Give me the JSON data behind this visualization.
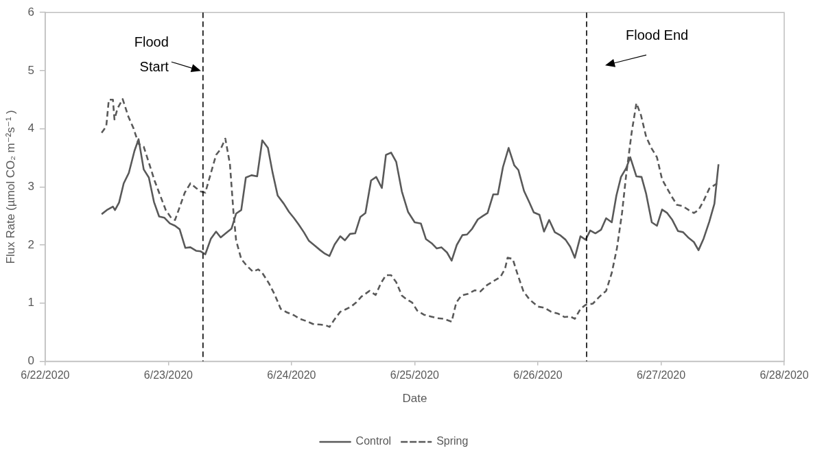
{
  "chart_data": {
    "type": "line",
    "xlabel": "Date",
    "ylabel": "Flux Rate (µmol CO₂ m⁻²s⁻¹ )",
    "xlim": [
      "2020-06-22",
      "2020-06-28"
    ],
    "xticks": [
      {
        "value": "2020-06-22",
        "label": "6/22/2020"
      },
      {
        "value": "2020-06-23",
        "label": "6/23/2020"
      },
      {
        "value": "2020-06-24",
        "label": "6/24/2020"
      },
      {
        "value": "2020-06-25",
        "label": "6/25/2020"
      },
      {
        "value": "2020-06-26",
        "label": "6/26/2020"
      },
      {
        "value": "2020-06-27",
        "label": "6/27/2020"
      },
      {
        "value": "2020-06-28",
        "label": "6/28/2020"
      }
    ],
    "ylim": [
      0,
      6
    ],
    "yticks": [
      0,
      1,
      2,
      3,
      4,
      5,
      6
    ],
    "grid": false,
    "legend": "bottom",
    "marker": "none",
    "ref_lines": [
      {
        "axis": "x",
        "value": "2020-06-23T06:45",
        "label": "Flood Start",
        "color": "#000000",
        "line_style": "dashed"
      },
      {
        "axis": "x",
        "value": "2020-06-26T09:30",
        "label": "Flood End",
        "color": "#000000",
        "line_style": "dashed"
      }
    ],
    "series": [
      {
        "name": "Control",
        "color": "#595959",
        "line_style": "solid",
        "x": [
          "2020-06-22T11:00",
          "2020-06-22T12:00",
          "2020-06-22T13:12",
          "2020-06-22T13:36",
          "2020-06-22T14:24",
          "2020-06-22T15:18",
          "2020-06-22T16:18",
          "2020-06-22T17:24",
          "2020-06-22T18:12",
          "2020-06-22T19:12",
          "2020-06-22T20:12",
          "2020-06-22T21:12",
          "2020-06-22T22:12",
          "2020-06-22T23:12",
          "2020-06-23T00:18",
          "2020-06-23T01:18",
          "2020-06-23T02:12",
          "2020-06-23T03:18",
          "2020-06-23T04:18",
          "2020-06-23T05:24",
          "2020-06-23T06:18",
          "2020-06-23T07:12",
          "2020-06-23T08:18",
          "2020-06-23T09:18",
          "2020-06-23T10:12",
          "2020-06-23T11:18",
          "2020-06-23T12:18",
          "2020-06-23T13:12",
          "2020-06-23T14:12",
          "2020-06-23T15:06",
          "2020-06-23T16:12",
          "2020-06-23T17:18",
          "2020-06-23T18:18",
          "2020-06-23T19:24",
          "2020-06-23T20:18",
          "2020-06-23T21:18",
          "2020-06-23T22:30",
          "2020-06-23T23:30",
          "2020-06-24T00:30",
          "2020-06-24T01:24",
          "2020-06-24T02:24",
          "2020-06-24T03:24",
          "2020-06-24T04:30",
          "2020-06-24T05:36",
          "2020-06-24T06:30",
          "2020-06-24T07:24",
          "2020-06-24T08:24",
          "2020-06-24T09:30",
          "2020-06-24T10:24",
          "2020-06-24T11:24",
          "2020-06-24T12:24",
          "2020-06-24T13:24",
          "2020-06-24T14:24",
          "2020-06-24T15:30",
          "2020-06-24T16:30",
          "2020-06-24T17:36",
          "2020-06-24T18:24",
          "2020-06-24T19:24",
          "2020-06-24T20:24",
          "2020-06-24T21:30",
          "2020-06-24T22:42",
          "2020-06-25T00:00",
          "2020-06-25T01:12",
          "2020-06-25T02:12",
          "2020-06-25T03:18",
          "2020-06-25T04:18",
          "2020-06-25T05:12",
          "2020-06-25T06:18",
          "2020-06-25T07:12",
          "2020-06-25T08:12",
          "2020-06-25T09:18",
          "2020-06-25T10:12",
          "2020-06-25T11:12",
          "2020-06-25T12:18",
          "2020-06-25T13:18",
          "2020-06-25T14:12",
          "2020-06-25T15:18",
          "2020-06-25T16:12",
          "2020-06-25T17:12",
          "2020-06-25T18:18",
          "2020-06-25T19:24",
          "2020-06-25T20:12",
          "2020-06-25T21:18",
          "2020-06-25T22:18",
          "2020-06-25T23:12",
          "2020-06-26T00:18",
          "2020-06-26T01:12",
          "2020-06-26T02:12",
          "2020-06-26T03:18",
          "2020-06-26T04:18",
          "2020-06-26T05:24",
          "2020-06-26T06:18",
          "2020-06-26T07:12",
          "2020-06-26T08:18",
          "2020-06-26T09:18",
          "2020-06-26T10:12",
          "2020-06-26T11:12",
          "2020-06-26T12:18",
          "2020-06-26T13:18",
          "2020-06-26T14:24",
          "2020-06-26T15:18",
          "2020-06-26T16:12",
          "2020-06-26T17:12",
          "2020-06-26T18:00",
          "2020-06-26T19:12",
          "2020-06-26T20:12",
          "2020-06-26T21:06",
          "2020-06-26T22:12",
          "2020-06-26T23:12",
          "2020-06-27T00:12",
          "2020-06-27T01:12",
          "2020-06-27T02:12",
          "2020-06-27T03:18",
          "2020-06-27T04:18",
          "2020-06-27T05:24",
          "2020-06-27T06:24",
          "2020-06-27T07:18",
          "2020-06-27T08:18",
          "2020-06-27T09:24",
          "2020-06-27T10:24",
          "2020-06-27T11:12"
        ],
        "values": [
          2.53,
          2.6,
          2.66,
          2.6,
          2.73,
          3.06,
          3.24,
          3.62,
          3.82,
          3.3,
          3.16,
          2.74,
          2.49,
          2.47,
          2.37,
          2.33,
          2.27,
          1.95,
          1.96,
          1.9,
          1.89,
          1.84,
          2.11,
          2.23,
          2.13,
          2.21,
          2.28,
          2.54,
          2.6,
          3.16,
          3.2,
          3.18,
          3.8,
          3.67,
          3.25,
          2.85,
          2.71,
          2.57,
          2.46,
          2.35,
          2.22,
          2.07,
          1.99,
          1.91,
          1.85,
          1.81,
          2.01,
          2.15,
          2.08,
          2.19,
          2.2,
          2.48,
          2.55,
          3.11,
          3.17,
          2.98,
          3.55,
          3.59,
          3.43,
          2.92,
          2.57,
          2.39,
          2.37,
          2.1,
          2.03,
          1.94,
          1.96,
          1.87,
          1.73,
          2.0,
          2.17,
          2.18,
          2.28,
          2.44,
          2.5,
          2.55,
          2.87,
          2.87,
          3.34,
          3.67,
          3.37,
          3.29,
          2.93,
          2.74,
          2.56,
          2.52,
          2.23,
          2.43,
          2.22,
          2.17,
          2.09,
          1.97,
          1.78,
          2.15,
          2.09,
          2.25,
          2.2,
          2.26,
          2.46,
          2.39,
          2.85,
          3.17,
          3.32,
          3.51,
          3.18,
          3.17,
          2.88,
          2.39,
          2.33,
          2.61,
          2.55,
          2.43,
          2.24,
          2.22,
          2.12,
          2.05,
          1.91,
          2.11,
          2.4,
          2.71,
          3.39
        ]
      },
      {
        "name": "Spring",
        "color": "#595959",
        "line_style": "dashed",
        "x": [
          "2020-06-22T11:00",
          "2020-06-22T11:54",
          "2020-06-22T12:24",
          "2020-06-22T13:12",
          "2020-06-22T13:30",
          "2020-06-22T14:06",
          "2020-06-22T15:06",
          "2020-06-22T16:12",
          "2020-06-22T17:12",
          "2020-06-22T18:12",
          "2020-06-22T19:12",
          "2020-06-22T20:18",
          "2020-06-22T21:18",
          "2020-06-22T22:30",
          "2020-06-22T23:30",
          "2020-06-23T00:36",
          "2020-06-23T01:18",
          "2020-06-23T02:12",
          "2020-06-23T03:12",
          "2020-06-23T04:18",
          "2020-06-23T05:24",
          "2020-06-23T06:18",
          "2020-06-23T07:12",
          "2020-06-23T08:18",
          "2020-06-23T09:18",
          "2020-06-23T10:12",
          "2020-06-23T11:06",
          "2020-06-23T12:00",
          "2020-06-23T12:42",
          "2020-06-23T13:12",
          "2020-06-23T14:12",
          "2020-06-23T15:18",
          "2020-06-23T16:30",
          "2020-06-23T17:30",
          "2020-06-23T18:18",
          "2020-06-23T19:36",
          "2020-06-23T20:42",
          "2020-06-23T21:54",
          "2020-06-23T23:06",
          "2020-06-24T00:30",
          "2020-06-24T01:36",
          "2020-06-24T02:54",
          "2020-06-24T04:12",
          "2020-06-24T05:36",
          "2020-06-24T06:36",
          "2020-06-24T07:24",
          "2020-06-24T08:18",
          "2020-06-24T09:30",
          "2020-06-24T10:30",
          "2020-06-24T11:36",
          "2020-06-24T12:36",
          "2020-06-24T13:36",
          "2020-06-24T15:12",
          "2020-06-24T16:24",
          "2020-06-24T17:24",
          "2020-06-24T18:24",
          "2020-06-24T19:24",
          "2020-06-24T20:24",
          "2020-06-24T21:30",
          "2020-06-24T22:30",
          "2020-06-24T23:30",
          "2020-06-25T00:30",
          "2020-06-25T01:48",
          "2020-06-25T03:06",
          "2020-06-25T04:24",
          "2020-06-25T05:42",
          "2020-06-25T07:12",
          "2020-06-25T08:06",
          "2020-06-25T09:06",
          "2020-06-25T10:24",
          "2020-06-25T11:42",
          "2020-06-25T12:48",
          "2020-06-25T14:06",
          "2020-06-25T15:24",
          "2020-06-25T16:42",
          "2020-06-25T17:36",
          "2020-06-25T18:06",
          "2020-06-25T19:06",
          "2020-06-25T20:06",
          "2020-06-25T21:12",
          "2020-06-25T22:24",
          "2020-06-26T00:00",
          "2020-06-26T01:18",
          "2020-06-26T02:36",
          "2020-06-26T03:54",
          "2020-06-26T05:12",
          "2020-06-26T06:18",
          "2020-06-26T07:12",
          "2020-06-26T08:18",
          "2020-06-26T09:18",
          "2020-06-26T10:42",
          "2020-06-26T12:00",
          "2020-06-26T13:18",
          "2020-06-26T14:24",
          "2020-06-26T15:24",
          "2020-06-26T16:24",
          "2020-06-26T17:12",
          "2020-06-26T18:18",
          "2020-06-26T19:12",
          "2020-06-26T20:06",
          "2020-06-26T21:06",
          "2020-06-26T22:06",
          "2020-06-26T23:12",
          "2020-06-27T00:12",
          "2020-06-27T01:12",
          "2020-06-27T02:06",
          "2020-06-27T03:06",
          "2020-06-27T04:12",
          "2020-06-27T05:24",
          "2020-06-27T06:24",
          "2020-06-27T07:18",
          "2020-06-27T08:18",
          "2020-06-27T09:24",
          "2020-06-27T10:54"
        ],
        "values": [
          3.93,
          4.04,
          4.5,
          4.5,
          4.16,
          4.35,
          4.51,
          4.21,
          4.01,
          3.74,
          3.69,
          3.39,
          3.11,
          2.83,
          2.6,
          2.46,
          2.43,
          2.65,
          2.9,
          3.06,
          2.98,
          2.92,
          2.9,
          3.24,
          3.55,
          3.65,
          3.83,
          3.39,
          2.55,
          2.08,
          1.76,
          1.64,
          1.54,
          1.58,
          1.52,
          1.34,
          1.15,
          0.9,
          0.84,
          0.79,
          0.73,
          0.69,
          0.64,
          0.63,
          0.62,
          0.59,
          0.71,
          0.85,
          0.89,
          0.94,
          1.01,
          1.11,
          1.21,
          1.14,
          1.34,
          1.48,
          1.48,
          1.36,
          1.13,
          1.06,
          1.01,
          0.87,
          0.8,
          0.77,
          0.74,
          0.73,
          0.68,
          1.01,
          1.13,
          1.16,
          1.22,
          1.2,
          1.31,
          1.38,
          1.45,
          1.59,
          1.78,
          1.76,
          1.48,
          1.2,
          1.06,
          0.94,
          0.92,
          0.85,
          0.82,
          0.76,
          0.77,
          0.73,
          0.9,
          0.97,
          0.99,
          1.11,
          1.21,
          1.52,
          1.94,
          2.55,
          3.2,
          3.95,
          4.44,
          4.23,
          3.86,
          3.67,
          3.51,
          3.13,
          2.97,
          2.83,
          2.69,
          2.67,
          2.6,
          2.55,
          2.6,
          2.76,
          2.97,
          3.06
        ]
      }
    ]
  }
}
